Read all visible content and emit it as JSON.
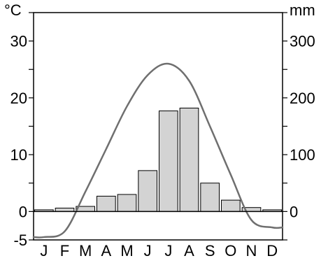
{
  "chart_data": {
    "type": "bar",
    "title": "",
    "units": {
      "left": "°C",
      "right": "mm"
    },
    "months": [
      "J",
      "F",
      "M",
      "A",
      "M",
      "J",
      "J",
      "A",
      "S",
      "O",
      "N",
      "D"
    ],
    "precipitation_mm": [
      3,
      6,
      9,
      27,
      30,
      72,
      177,
      182,
      50,
      20,
      7,
      3
    ],
    "temperature_c": [
      -4.5,
      -3.5,
      3.5,
      11,
      18.5,
      24,
      26,
      23,
      15,
      6.5,
      -1.5,
      -2.8
    ],
    "left_axis": {
      "min": -5,
      "max": 35,
      "tick_labels": [
        "-5",
        "0",
        "10",
        "20",
        "30"
      ]
    },
    "right_axis": {
      "min": -50,
      "max": 350,
      "tick_labels": [
        "0",
        "100",
        "200",
        "300"
      ]
    },
    "grid": false,
    "colors": {
      "bar_fill": "#d3d3d3",
      "bar_stroke": "#000000",
      "temperature_line": "#6f6f6f",
      "axis": "#000000"
    }
  }
}
